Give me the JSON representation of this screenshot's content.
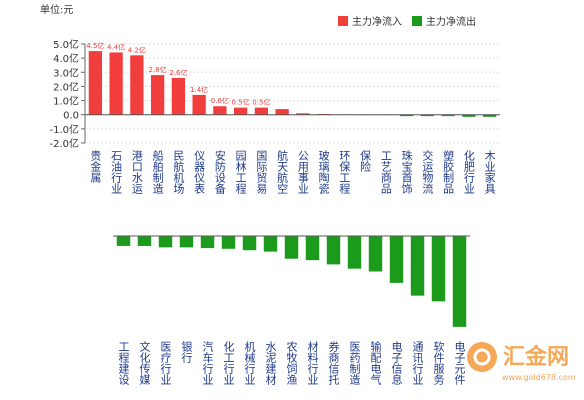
{
  "chart_data": [
    {
      "type": "bar",
      "unit_label": "单位:元",
      "legend": [
        {
          "name": "主力净流入",
          "color": "#f23d3d"
        },
        {
          "name": "主力净流出",
          "color": "#1b9a1b"
        }
      ],
      "categories": [
        "贵金属",
        "石油行业",
        "港口水运",
        "船舶制造",
        "民航机场",
        "仪器仪表",
        "安防设备",
        "园林工程",
        "国际贸易",
        "航天航空",
        "公用事业",
        "玻璃陶瓷",
        "环保工程",
        "保险",
        "工艺商品",
        "珠宝首饰",
        "交运物流",
        "塑胶制品",
        "化肥行业",
        "木业家具"
      ],
      "values": [
        4.5,
        4.4,
        4.2,
        2.8,
        2.6,
        1.4,
        0.6,
        0.5,
        0.5,
        0.4,
        0.1,
        0.05,
        0.02,
        0.01,
        0.01,
        -0.1,
        -0.1,
        -0.1,
        -0.15,
        -0.15
      ],
      "value_labels": [
        "4.5亿",
        "4.4亿",
        "4.2亿",
        "2.8亿",
        "2.6亿",
        "1.4亿",
        "0.6亿",
        "0.5亿",
        "0.5亿",
        null,
        null,
        null,
        null,
        null,
        null,
        null,
        null,
        null,
        null,
        null
      ],
      "ylim": [
        -2,
        5
      ],
      "yticks": [
        {
          "value": 5,
          "label": "5.0亿"
        },
        {
          "value": 4,
          "label": "4.0亿"
        },
        {
          "value": 3,
          "label": "3.0亿"
        },
        {
          "value": 2,
          "label": "2.0亿"
        },
        {
          "value": 1,
          "label": "1.0亿"
        },
        {
          "value": 0,
          "label": "0.0"
        },
        {
          "value": -1,
          "label": "-1.0亿"
        },
        {
          "value": -2,
          "label": "-2.0亿"
        }
      ],
      "grid": true
    },
    {
      "type": "bar",
      "color": "#1b9a1b",
      "categories": [
        "工程建设",
        "文化传媒",
        "医疗行业",
        "银行",
        "汽车行业",
        "化工行业",
        "机械行业",
        "水泥建材",
        "农牧饲渔",
        "材料行业",
        "券商信托",
        "医药制造",
        "输配电气",
        "电子信息",
        "通讯行业",
        "软件服务",
        "电子元件"
      ],
      "values": [
        -0.7,
        -0.7,
        -0.8,
        -0.8,
        -0.85,
        -0.9,
        -1.0,
        -1.1,
        -1.6,
        -1.7,
        -2.0,
        -2.3,
        -2.5,
        -3.3,
        -4.2,
        -4.6,
        -6.4
      ],
      "ylim": [
        -7,
        0
      ]
    }
  ],
  "watermark": {
    "title": "汇金网",
    "url": "www.gold678.com"
  }
}
